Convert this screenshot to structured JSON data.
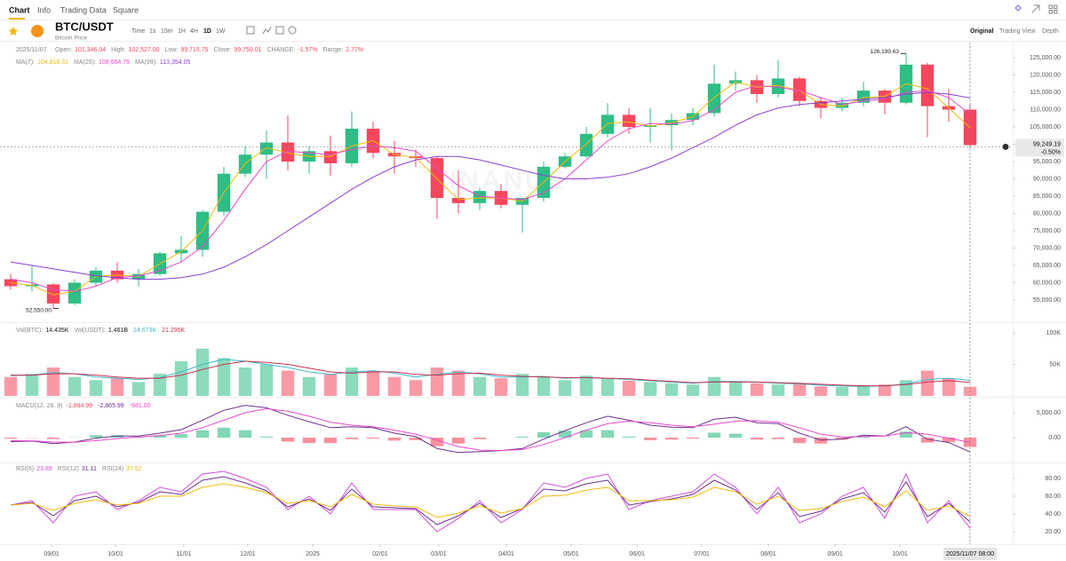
{
  "nav": {
    "tabs": [
      "Chart",
      "Info",
      "Trading Data",
      "Square"
    ]
  },
  "header": {
    "symbol": "BTC/USDT",
    "subtitle": "Bitcoin Price",
    "intervals": [
      "Time",
      "1s",
      "15m",
      "1H",
      "4H",
      "1D",
      "1W"
    ],
    "active_interval": 5,
    "views": [
      "Original",
      "Trading View",
      "Depth"
    ],
    "active_view": 0
  },
  "ohlc_info": {
    "date": "2025/11/07",
    "items": [
      {
        "label": "Open:",
        "value": "101,346.04"
      },
      {
        "label": "High:",
        "value": "102,527.00"
      },
      {
        "label": "Low:",
        "value": "99,715.75"
      },
      {
        "label": "Close:",
        "value": "99,750.01"
      },
      {
        "label": "CHANGE:",
        "value": "-1.57%"
      },
      {
        "label": "Range:",
        "value": "2.77%"
      }
    ]
  },
  "chart_data": [
    {
      "type": "candlestick",
      "watermark": "BINANCE",
      "up_color": "#2ebd85",
      "down_color": "#f6465d",
      "xlim": [
        -0.5,
        47
      ],
      "ylim": [
        48850,
        129360
      ],
      "yticks": [
        {
          "value": 55000,
          "label": "55,000.00"
        },
        {
          "value": 60000,
          "label": "60,000.00"
        },
        {
          "value": 65000,
          "label": "65,000.00"
        },
        {
          "value": 70000,
          "label": "70,000.00"
        },
        {
          "value": 75000,
          "label": "75,000.00"
        },
        {
          "value": 80000,
          "label": "80,000.00"
        },
        {
          "value": 85000,
          "label": "85,000.00"
        },
        {
          "value": 90000,
          "label": "90,000.00"
        },
        {
          "value": 95000,
          "label": "95,000.00"
        },
        {
          "value": 100000,
          "label": "100,000.00"
        },
        {
          "value": 105000,
          "label": "105,000.00"
        },
        {
          "value": 110000,
          "label": "110,000.00"
        },
        {
          "value": 115000,
          "label": "115,000.00"
        },
        {
          "value": 120000,
          "label": "120,000.00"
        },
        {
          "value": 125000,
          "label": "125,000.00"
        }
      ],
      "open": [
        61000,
        59000,
        59500,
        54000,
        60000,
        63500,
        61000,
        62500,
        68500,
        69500,
        80500,
        91500,
        97000,
        100500,
        95000,
        98000,
        94500,
        104500,
        97500,
        96500,
        96000,
        84500,
        83000,
        86500,
        82500,
        84500,
        93500,
        96500,
        103000,
        108500,
        105000,
        105500,
        107000,
        109000,
        117500,
        118500,
        114500,
        119000,
        112500,
        110500,
        112000,
        115500,
        112000,
        123000,
        111000,
        110000
      ],
      "high": [
        62500,
        65000,
        60000,
        61000,
        64500,
        66000,
        64000,
        69000,
        73500,
        81000,
        93500,
        99500,
        104000,
        108300,
        99500,
        102500,
        109500,
        106500,
        101000,
        98500,
        96500,
        92500,
        87500,
        88500,
        84500,
        95000,
        97500,
        105000,
        111900,
        110500,
        110500,
        108900,
        110500,
        123000,
        121000,
        120000,
        124400,
        119500,
        113500,
        113500,
        118000,
        116000,
        126199.63,
        123500,
        116000,
        111500
      ],
      "low": [
        58000,
        57500,
        52550,
        53500,
        59000,
        60000,
        58900,
        62000,
        66000,
        67500,
        79500,
        90500,
        90000,
        92500,
        91500,
        91000,
        93500,
        96000,
        91500,
        93500,
        78500,
        80000,
        81000,
        81500,
        74500,
        83500,
        93000,
        96000,
        102000,
        103000,
        100500,
        98200,
        105500,
        108000,
        115500,
        112000,
        113500,
        111000,
        107500,
        109500,
        111000,
        108700,
        111500,
        102000,
        106500,
        98900
      ],
      "close": [
        59000,
        59500,
        54000,
        60000,
        63500,
        61000,
        62500,
        68500,
        69500,
        80500,
        91500,
        97000,
        100500,
        95000,
        98000,
        94500,
        104500,
        97500,
        96500,
        96000,
        84500,
        83000,
        86500,
        82500,
        84500,
        93500,
        96500,
        103000,
        108500,
        105000,
        105500,
        107000,
        109000,
        117500,
        118500,
        114500,
        119000,
        112500,
        110500,
        112000,
        115500,
        112000,
        123000,
        111000,
        110000,
        99750.01
      ],
      "max_label": "126,199.63",
      "min_label": "52,550.00",
      "last_price": 99249.19,
      "last_price_label": "99,249.19",
      "last_change": "-0.50%",
      "series": [
        {
          "name": "MA(7):",
          "color": "#f0b90b",
          "value_label": "104,816.31",
          "values": [
            60000,
            59200,
            56500,
            57500,
            61800,
            62200,
            61800,
            65500,
            69000,
            75000,
            86000,
            94500,
            99000,
            97500,
            96500,
            96500,
            99500,
            101000,
            97000,
            96200,
            90000,
            84000,
            84500,
            84500,
            83500,
            89000,
            95000,
            100000,
            106000,
            106500,
            105200,
            106200,
            108000,
            113500,
            118000,
            116500,
            117000,
            115500,
            111500,
            111000,
            113500,
            113800,
            117500,
            116000,
            110500,
            104816.31
          ]
        },
        {
          "name": "MA(25):",
          "color": "#e649c9",
          "value_label": "108,664.76",
          "values": [
            61000,
            60000,
            58000,
            57500,
            59000,
            61500,
            62000,
            63500,
            66000,
            70500,
            78000,
            87000,
            95000,
            98000,
            97500,
            97000,
            98500,
            99500,
            99000,
            98000,
            93000,
            88000,
            85000,
            84500,
            84000,
            86000,
            90000,
            95500,
            101000,
            104500,
            106000,
            105800,
            106800,
            110000,
            115000,
            117000,
            116500,
            115500,
            113500,
            111500,
            112500,
            113000,
            115000,
            115500,
            113500,
            108664.76
          ]
        },
        {
          "name": "MA(99):",
          "color": "#8a3fd1",
          "value_label": "113,354.05",
          "values": [
            66000,
            65000,
            64000,
            63000,
            62000,
            61500,
            61000,
            61000,
            61500,
            62500,
            64500,
            67500,
            71000,
            75000,
            79000,
            83000,
            87000,
            90500,
            93500,
            95500,
            96500,
            96500,
            95500,
            94000,
            92500,
            91000,
            90000,
            90000,
            90500,
            91500,
            93500,
            96000,
            99000,
            102000,
            105500,
            108500,
            110500,
            111500,
            112000,
            112500,
            113000,
            113500,
            114500,
            115000,
            114500,
            113354.05
          ]
        }
      ]
    },
    {
      "type": "bar",
      "label": "Vol(BTC):",
      "last_label": "14.435K",
      "quote_label": "Vol(USDT):",
      "quote_value": "1.461B",
      "xlim": [
        -0.5,
        47
      ],
      "ylim": [
        0,
        114000
      ],
      "yticks": [
        {
          "value": 50000,
          "label": "50K"
        },
        {
          "value": 100000,
          "label": "100K"
        }
      ],
      "values": [
        30000,
        35000,
        45000,
        30000,
        25000,
        28000,
        22000,
        35000,
        55000,
        75000,
        60000,
        45000,
        50000,
        40000,
        30000,
        35000,
        45000,
        40000,
        30000,
        25000,
        45000,
        40000,
        30000,
        28000,
        35000,
        30000,
        25000,
        32000,
        28000,
        24000,
        22000,
        20000,
        18000,
        30000,
        22000,
        20000,
        18000,
        20000,
        15000,
        14000,
        16000,
        18000,
        25000,
        40000,
        28000,
        14435
      ],
      "series": [
        {
          "color": "#3fb8c8",
          "value_label": "24.673K",
          "values": [
            32000,
            33000,
            37000,
            35000,
            30000,
            28000,
            26000,
            29000,
            38000,
            50000,
            58000,
            55000,
            50000,
            45000,
            38000,
            34000,
            38000,
            40000,
            36000,
            30000,
            34000,
            38000,
            35000,
            30000,
            30000,
            31000,
            28000,
            29000,
            28000,
            26000,
            24000,
            22000,
            20000,
            23000,
            23000,
            22000,
            20000,
            19000,
            17000,
            15500,
            15000,
            16000,
            19000,
            26000,
            28000,
            24673
          ]
        },
        {
          "color": "#c8304f",
          "value_label": "21.295K",
          "values": [
            33000,
            33000,
            35000,
            35000,
            33000,
            30000,
            28000,
            28000,
            33000,
            42000,
            50000,
            55000,
            53000,
            50000,
            44000,
            38000,
            36000,
            38000,
            38000,
            34000,
            33000,
            35000,
            36000,
            33000,
            31000,
            30000,
            29000,
            29000,
            28000,
            27000,
            25000,
            23000,
            21000,
            22000,
            22000,
            22000,
            21000,
            20000,
            18500,
            17000,
            16000,
            16000,
            18000,
            22000,
            24000,
            21295
          ]
        }
      ]
    },
    {
      "type": "macd",
      "label": "MACD(12, 26, 9)",
      "xlim": [
        -0.5,
        47
      ],
      "ylim": [
        -4820,
        7680
      ],
      "yticks": [
        {
          "value": 5000,
          "label": "5,000.00"
        },
        {
          "value": 0,
          "label": "0.00"
        }
      ],
      "histogram": {
        "color": "#f6465d",
        "value_label": "-1,884.99",
        "values": [
          -200,
          -50,
          -300,
          50,
          500,
          500,
          200,
          500,
          700,
          1500,
          2000,
          1500,
          200,
          -800,
          -1100,
          -1100,
          -300,
          -200,
          -600,
          -500,
          -1700,
          -1200,
          -300,
          0,
          200,
          1100,
          1400,
          1500,
          1500,
          200,
          -500,
          -400,
          -200,
          1000,
          800,
          -400,
          -300,
          -1100,
          -1200,
          -400,
          300,
          0,
          1200,
          -1000,
          -900,
          -1884.99
        ]
      },
      "series": [
        {
          "color": "#6c2f8f",
          "value_label": "-2,865.99",
          "values": [
            -800,
            -700,
            -1200,
            -900,
            -100,
            300,
            300,
            900,
            1600,
            3500,
            5500,
            6500,
            6000,
            4500,
            3200,
            2000,
            2200,
            2000,
            900,
            200,
            -2200,
            -3000,
            -2800,
            -2600,
            -2200,
            -300,
            1400,
            3000,
            4300,
            3500,
            2500,
            2100,
            2000,
            3700,
            4100,
            3000,
            2800,
            900,
            -500,
            -300,
            500,
            300,
            2200,
            -300,
            -1000,
            -2865.99
          ]
        },
        {
          "color": "#e649c9",
          "value_label": "-981.00",
          "values": [
            -600,
            -650,
            -900,
            -950,
            -600,
            -200,
            100,
            400,
            900,
            2000,
            3500,
            5000,
            5800,
            5300,
            4300,
            3100,
            2500,
            2200,
            1500,
            700,
            -500,
            -1800,
            -2500,
            -2600,
            -2400,
            -1400,
            0,
            1500,
            2800,
            3300,
            3000,
            2500,
            2200,
            2700,
            3300,
            3400,
            3100,
            2000,
            700,
            100,
            200,
            300,
            1000,
            700,
            -100,
            -981
          ]
        }
      ]
    },
    {
      "type": "line",
      "xlim": [
        -0.5,
        47
      ],
      "ylim": [
        7,
        97
      ],
      "yticks": [
        {
          "value": 20,
          "label": "20.00"
        },
        {
          "value": 40,
          "label": "40.00"
        },
        {
          "value": 60,
          "label": "60.00"
        },
        {
          "value": 80,
          "label": "80.00"
        }
      ],
      "series": [
        {
          "name": "RSI(6)",
          "color": "#d24ddb",
          "values": [
            50,
            55,
            30,
            60,
            65,
            45,
            55,
            70,
            65,
            85,
            88,
            80,
            70,
            45,
            60,
            40,
            75,
            45,
            45,
            45,
            20,
            35,
            55,
            30,
            45,
            75,
            70,
            80,
            85,
            45,
            55,
            60,
            65,
            85,
            70,
            40,
            70,
            30,
            40,
            60,
            70,
            35,
            85,
            30,
            55,
            23.89
          ]
        },
        {
          "name": "RSI(12)",
          "color": "#6c2f8f",
          "values": [
            50,
            53,
            38,
            55,
            60,
            48,
            53,
            65,
            62,
            78,
            82,
            75,
            66,
            48,
            57,
            44,
            68,
            48,
            47,
            46,
            28,
            38,
            52,
            36,
            46,
            68,
            66,
            74,
            78,
            50,
            54,
            57,
            62,
            78,
            67,
            45,
            64,
            37,
            43,
            57,
            64,
            42,
            76,
            37,
            52,
            31.11
          ]
        },
        {
          "name": "RSI(24)",
          "color": "#f0b90b",
          "values": [
            50,
            52,
            44,
            52,
            56,
            50,
            52,
            60,
            60,
            70,
            74,
            70,
            64,
            52,
            55,
            48,
            62,
            51,
            49,
            48,
            36,
            41,
            49,
            41,
            46,
            60,
            61,
            67,
            70,
            55,
            55,
            56,
            59,
            70,
            65,
            51,
            60,
            44,
            46,
            54,
            59,
            48,
            66,
            44,
            49,
            37.52
          ]
        }
      ],
      "xticks": [
        {
          "value": 1.92,
          "label": "09/01"
        },
        {
          "value": 4.92,
          "label": "10/01"
        },
        {
          "value": 8.12,
          "label": "11/01"
        },
        {
          "value": 11.12,
          "label": "12/01"
        },
        {
          "value": 14.17,
          "label": "2025"
        },
        {
          "value": 17.33,
          "label": "02/01"
        },
        {
          "value": 20.08,
          "label": "03/01"
        },
        {
          "value": 23.25,
          "label": "04/01"
        },
        {
          "value": 26.29,
          "label": "05/01"
        },
        {
          "value": 29.38,
          "label": "06/01"
        },
        {
          "value": 32.42,
          "label": "07/01"
        },
        {
          "value": 35.54,
          "label": "08/01"
        },
        {
          "value": 38.67,
          "label": "09/01"
        },
        {
          "value": 41.71,
          "label": "10/01"
        }
      ],
      "cursor": {
        "value": 45,
        "label": "2025/11/07 08:00"
      }
    }
  ]
}
